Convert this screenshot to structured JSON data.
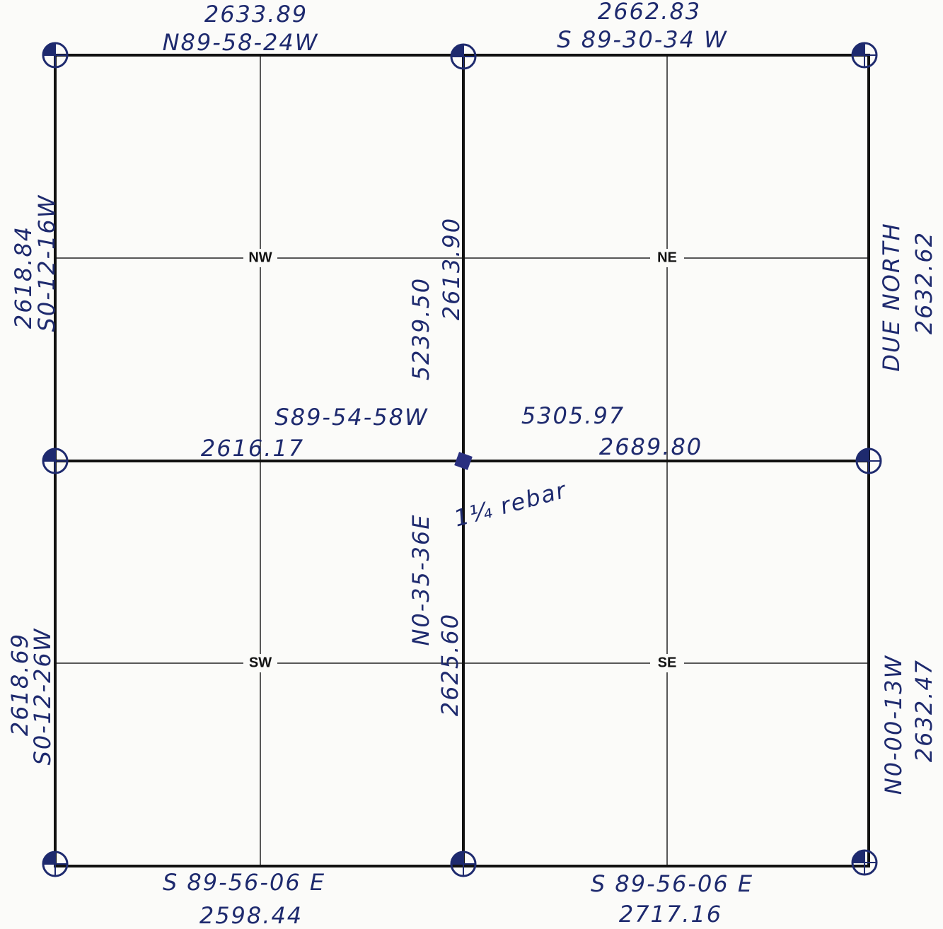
{
  "labels": [
    "2633.89",
    "N89-58-24W",
    "2662.83",
    "S 89-30-34 W",
    "2618.84",
    "S0-12-16W",
    "5239.50",
    "2613.90",
    "DUE NORTH",
    "2632.62",
    "S89-54-58W",
    "5305.97",
    "2616.17",
    "2689.80",
    "1¼ rebar",
    "2618.69",
    "S0-12-26W",
    "N0-35-36E",
    "2625.60",
    "N0-00-13W",
    "2632.47",
    "S 89-56-06 E",
    "2598.44",
    "S 89-56-06 E",
    "2717.16"
  ],
  "quarters": [
    "NW",
    "NE",
    "SW",
    "SE"
  ]
}
